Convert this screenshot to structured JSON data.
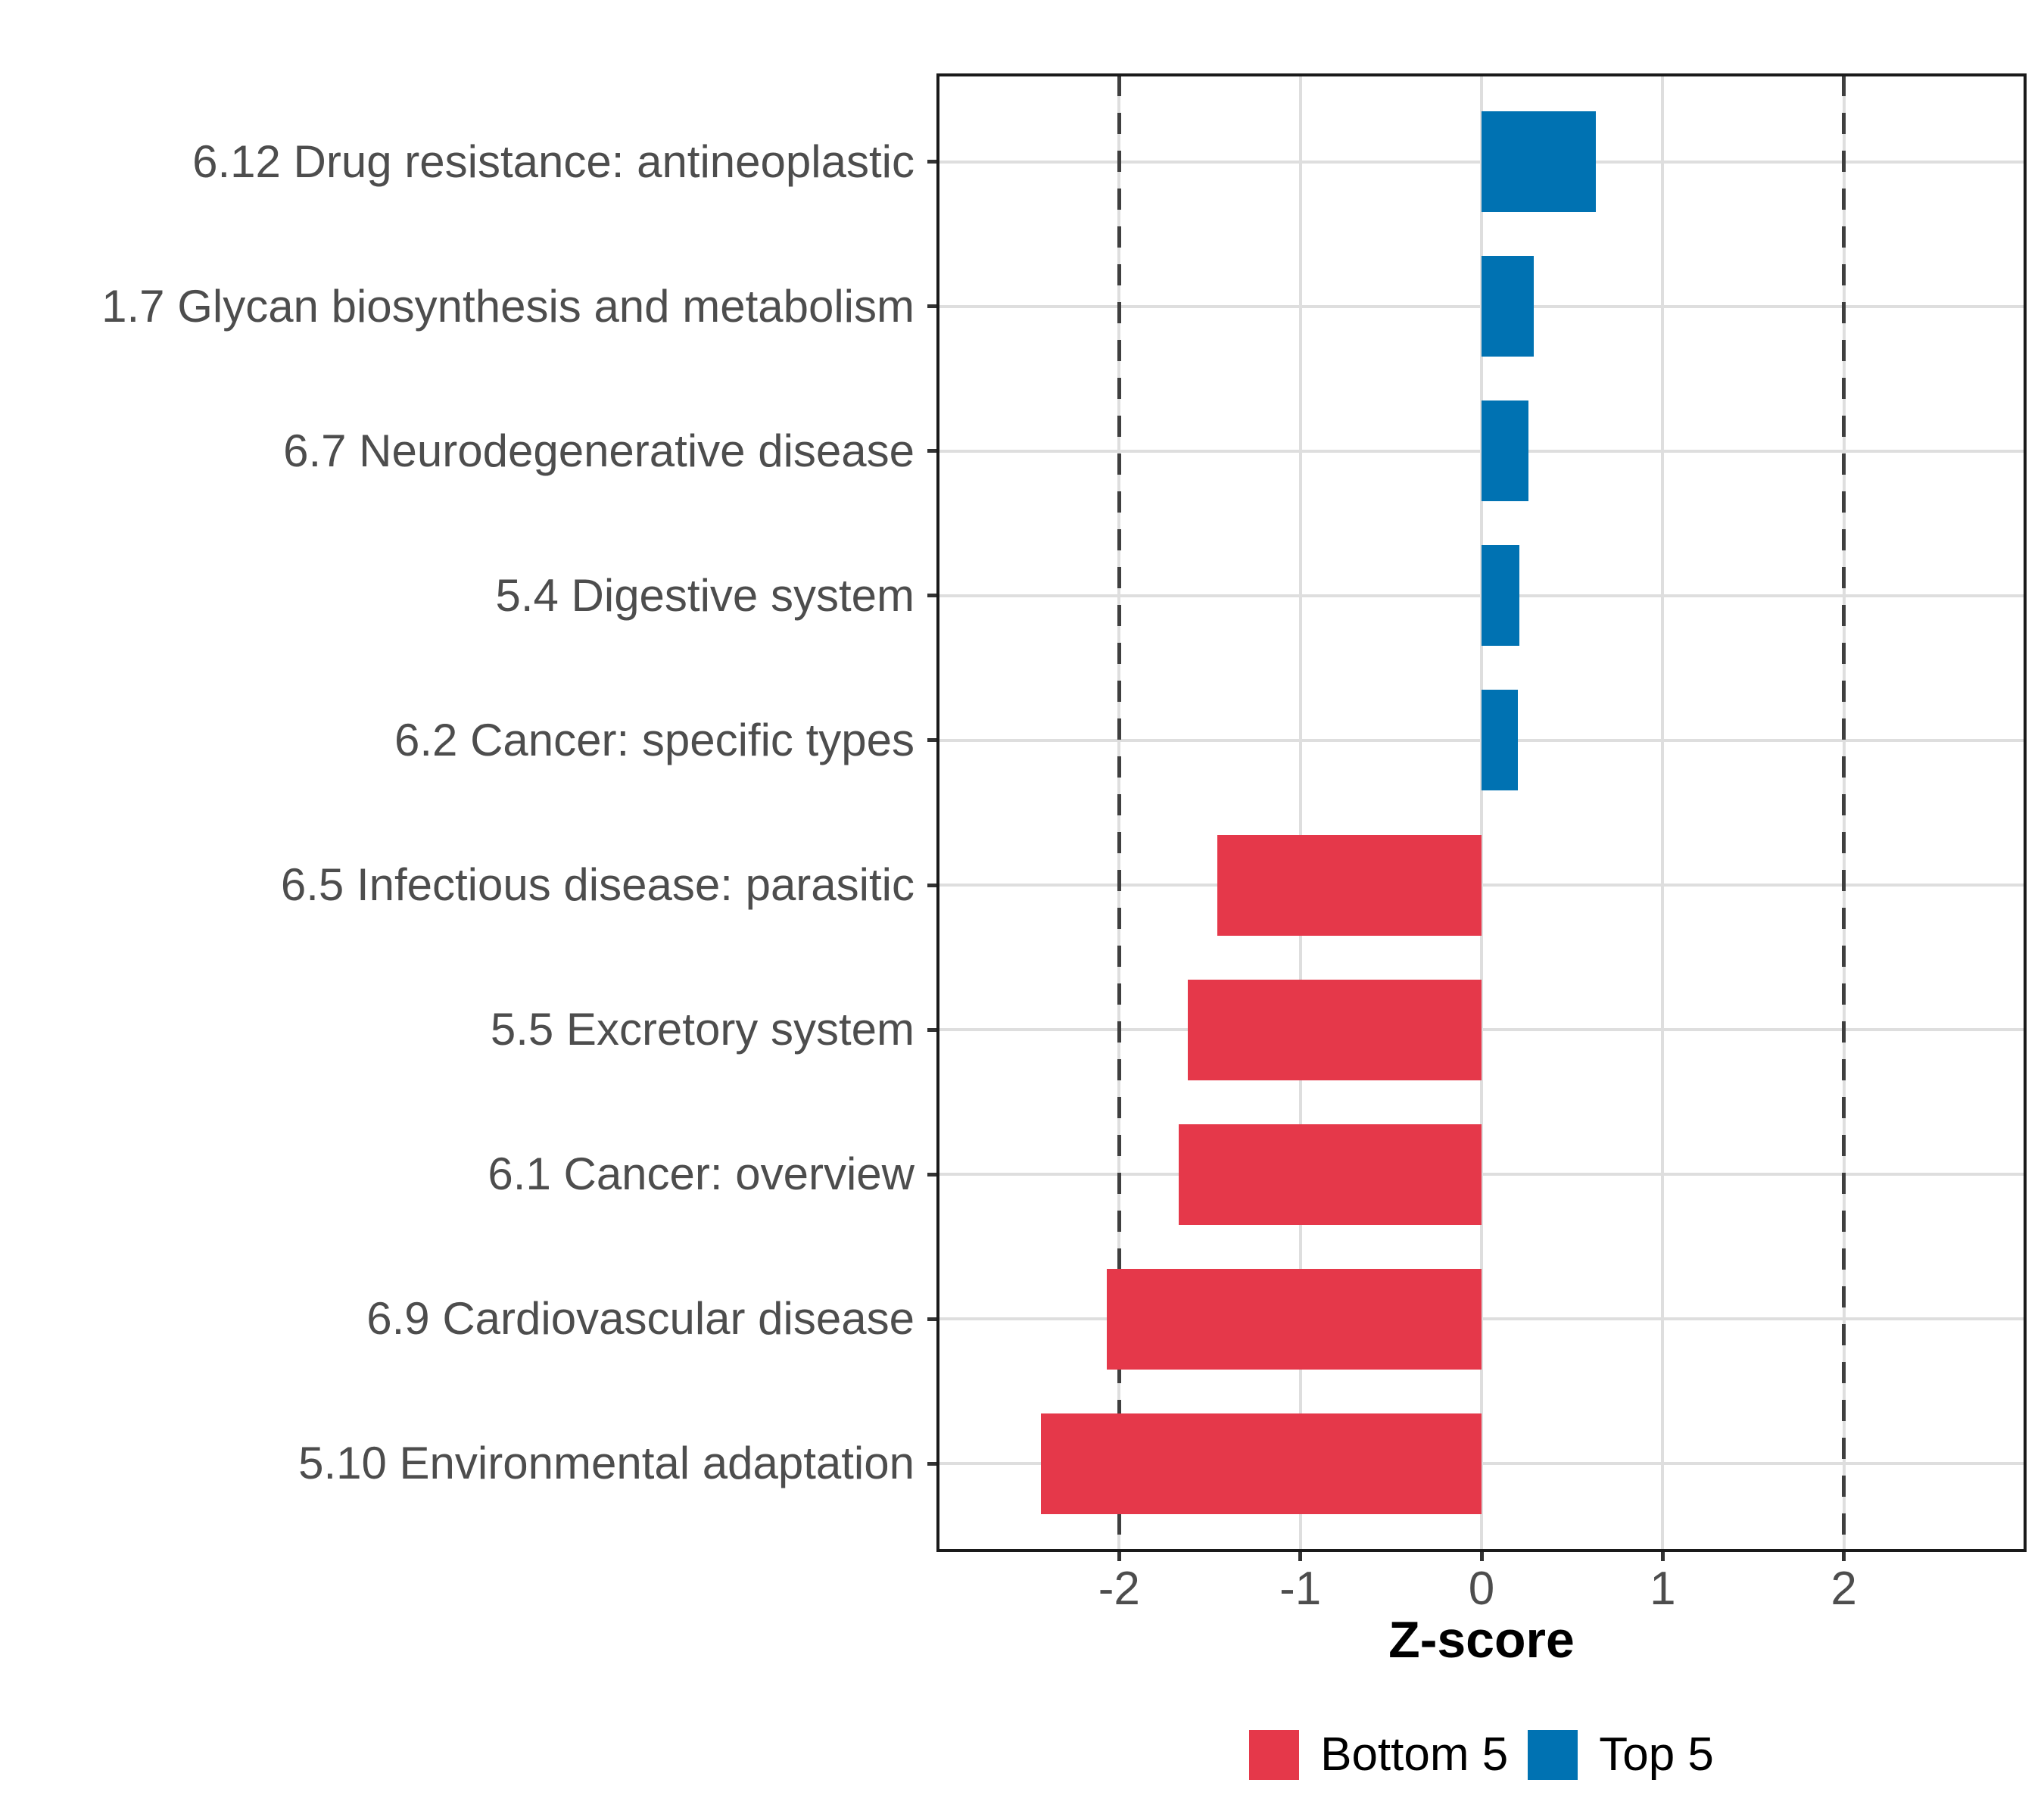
{
  "chart_data": {
    "type": "bar",
    "orientation": "horizontal",
    "title": "",
    "xlabel": "Z-score",
    "ylabel": "",
    "categories": [
      "6.12 Drug resistance: antineoplastic",
      "1.7 Glycan biosynthesis and metabolism",
      "6.7 Neurodegenerative disease",
      "5.4 Digestive system",
      "6.2 Cancer: specific types",
      "6.5 Infectious disease: parasitic",
      "5.5 Excretory system",
      "6.1 Cancer: overview",
      "6.9 Cardiovascular disease",
      "5.10 Environmental adaptation"
    ],
    "values": [
      0.63,
      0.29,
      0.26,
      0.21,
      0.2,
      -1.46,
      -1.62,
      -1.67,
      -2.07,
      -2.43
    ],
    "groups": [
      "Top 5",
      "Top 5",
      "Top 5",
      "Top 5",
      "Top 5",
      "Bottom 5",
      "Bottom 5",
      "Bottom 5",
      "Bottom 5",
      "Bottom 5"
    ],
    "series": [
      {
        "name": "Top 5",
        "color": "#0072B2",
        "values": [
          0.63,
          0.29,
          0.26,
          0.21,
          0.2,
          null,
          null,
          null,
          null,
          null
        ]
      },
      {
        "name": "Bottom 5",
        "color": "#E5384A",
        "values": [
          null,
          null,
          null,
          null,
          null,
          -1.46,
          -1.62,
          -1.67,
          -2.07,
          -2.43
        ]
      }
    ],
    "x_ticks": [
      -2,
      -1,
      0,
      1,
      2
    ],
    "xlim": [
      -3,
      3
    ],
    "grid": true,
    "reference_lines": {
      "values": [
        -2,
        2
      ],
      "style": "dashed",
      "color": "#3F3F3F"
    },
    "legend": {
      "position": "bottom",
      "items": [
        {
          "label": "Bottom 5",
          "color": "#E5384A"
        },
        {
          "label": "Top 5",
          "color": "#0072B2"
        }
      ]
    },
    "style": {
      "background": "#FFFFFF",
      "grid_color": "#DEDEDE",
      "refline_color": "#3F3F3F",
      "panel_border_color": "#1A1A1A",
      "tick_color": "#333333",
      "axis_text_color": "#4D4D4D",
      "axis_title_color": "#000000"
    }
  }
}
